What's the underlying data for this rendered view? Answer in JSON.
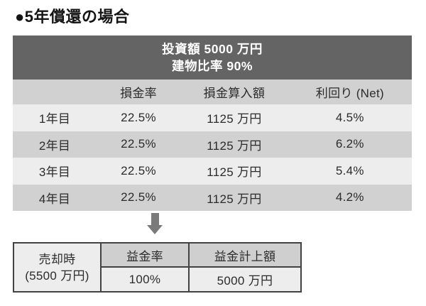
{
  "title": "●5年償還の場合",
  "colors": {
    "header_bg": "#646464",
    "header_text": "#ffffff",
    "row_dark": "#d1d1d1",
    "row_light": "#ededed",
    "sale_header_bg": "#cfcfcf",
    "border": "#424242",
    "arrow": "#7a7a7a",
    "text": "#2b2b2b"
  },
  "investment_table": {
    "header": {
      "line1": "投資額 5000 万円",
      "line2": "建物比率 90%"
    },
    "columns": {
      "c0": "",
      "c1": "損金率",
      "c2": "損金算入額",
      "c3": "利回り (Net)"
    },
    "rows": [
      {
        "label": "1年目",
        "rate": "22.5%",
        "amount": "1125 万円",
        "yield": "4.5%"
      },
      {
        "label": "2年目",
        "rate": "22.5%",
        "amount": "1125 万円",
        "yield": "6.2%"
      },
      {
        "label": "3年目",
        "rate": "22.5%",
        "amount": "1125 万円",
        "yield": "5.4%"
      },
      {
        "label": "4年目",
        "rate": "22.5%",
        "amount": "1125 万円",
        "yield": "4.2%"
      }
    ]
  },
  "icons": {
    "down_arrow": "down-arrow"
  },
  "sale_table": {
    "label": {
      "line1": "売却時",
      "line2": "(5500 万円)"
    },
    "columns": [
      "益金率",
      "益金計上額"
    ],
    "values": [
      "100%",
      "5000 万円"
    ]
  }
}
